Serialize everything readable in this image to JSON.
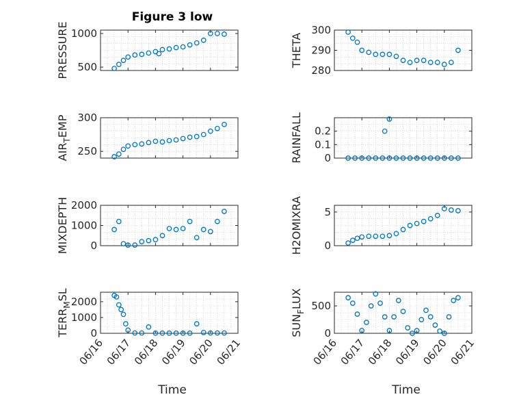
{
  "figure": {
    "title": "Figure 3 low",
    "xlabel_left": "Time",
    "xlabel_right": "Time"
  },
  "colors": {
    "marker": "#0072BD",
    "axis": "#262626",
    "grid": "#bfbfbf"
  },
  "chart_data": [
    {
      "type": "scatter",
      "title": "Figure 3 low",
      "ylabel": "PRESSURE",
      "xlim": [
        "06/16",
        "06/21"
      ],
      "ylim": [
        450,
        1050
      ],
      "yticks": [
        500,
        1000
      ],
      "grid": true,
      "series": [
        {
          "x": [
            "06/16 12:00",
            "06/16 16:00",
            "06/16 20:00",
            "06/17 00:00",
            "06/17 06:00",
            "06/17 12:00",
            "06/17 18:00",
            "06/18 00:00",
            "06/18 03:00",
            "06/18 06:00",
            "06/18 12:00",
            "06/18 18:00",
            "06/19 00:00",
            "06/19 06:00",
            "06/19 12:00",
            "06/19 18:00",
            "06/20 00:00",
            "06/20 06:00",
            "06/20 12:00"
          ],
          "y": [
            480,
            540,
            600,
            650,
            680,
            690,
            710,
            730,
            700,
            760,
            770,
            790,
            800,
            830,
            860,
            900,
            1000,
            1000,
            990
          ]
        }
      ]
    },
    {
      "type": "scatter",
      "ylabel": "THETA",
      "xlim": [
        "06/16",
        "06/21"
      ],
      "ylim": [
        280,
        300
      ],
      "yticks": [
        280,
        290,
        300
      ],
      "grid": true,
      "series": [
        {
          "x": [
            "06/16 12:00",
            "06/16 16:00",
            "06/16 20:00",
            "06/17 00:00",
            "06/17 06:00",
            "06/17 12:00",
            "06/17 18:00",
            "06/18 00:00",
            "06/18 06:00",
            "06/18 12:00",
            "06/18 18:00",
            "06/19 00:00",
            "06/19 06:00",
            "06/19 12:00",
            "06/19 18:00",
            "06/20 00:00",
            "06/20 06:00",
            "06/20 12:00"
          ],
          "y": [
            299,
            296,
            294,
            290,
            289,
            288,
            288,
            288,
            287,
            285,
            284,
            285,
            285,
            284,
            284,
            283,
            284,
            290
          ]
        }
      ]
    },
    {
      "type": "scatter",
      "ylabel": "AIR_TEMP",
      "xlim": [
        "06/16",
        "06/21"
      ],
      "ylim": [
        240,
        300
      ],
      "yticks": [
        250,
        300
      ],
      "grid": true,
      "series": [
        {
          "x": [
            "06/16 12:00",
            "06/16 16:00",
            "06/16 20:00",
            "06/17 00:00",
            "06/17 06:00",
            "06/17 12:00",
            "06/17 18:00",
            "06/18 00:00",
            "06/18 06:00",
            "06/18 12:00",
            "06/18 18:00",
            "06/19 00:00",
            "06/19 06:00",
            "06/19 12:00",
            "06/19 18:00",
            "06/20 00:00",
            "06/20 06:00",
            "06/20 12:00"
          ],
          "y": [
            242,
            246,
            253,
            258,
            260,
            261,
            263,
            265,
            264,
            266,
            267,
            269,
            271,
            272,
            275,
            280,
            284,
            290
          ]
        }
      ]
    },
    {
      "type": "scatter",
      "ylabel": "RAINFALL",
      "xlim": [
        "06/16",
        "06/21"
      ],
      "ylim": [
        0,
        0.3
      ],
      "yticks": [
        0,
        0.1,
        0.2
      ],
      "grid": true,
      "series": [
        {
          "x": [
            "06/16 12:00",
            "06/16 18:00",
            "06/17 00:00",
            "06/17 06:00",
            "06/17 12:00",
            "06/17 18:00",
            "06/18 00:00",
            "06/18 06:00",
            "06/18 12:00",
            "06/18 18:00",
            "06/19 00:00",
            "06/19 06:00",
            "06/19 12:00",
            "06/19 18:00",
            "06/20 00:00",
            "06/20 06:00",
            "06/20 12:00",
            "06/17 20:00",
            "06/18 00:00"
          ],
          "y": [
            0,
            0,
            0,
            0,
            0,
            0,
            0,
            0,
            0,
            0,
            0,
            0,
            0,
            0,
            0,
            0,
            0,
            0.2,
            0.29
          ]
        }
      ]
    },
    {
      "type": "scatter",
      "ylabel": "MIXDEPTH",
      "xlim": [
        "06/16",
        "06/21"
      ],
      "ylim": [
        0,
        2000
      ],
      "yticks": [
        0,
        1000,
        2000
      ],
      "grid": true,
      "series": [
        {
          "x": [
            "06/16 12:00",
            "06/16 16:00",
            "06/16 20:00",
            "06/17 00:00",
            "06/17 06:00",
            "06/17 12:00",
            "06/17 18:00",
            "06/18 00:00",
            "06/18 06:00",
            "06/18 12:00",
            "06/18 18:00",
            "06/19 00:00",
            "06/19 06:00",
            "06/19 12:00",
            "06/19 18:00",
            "06/20 00:00",
            "06/20 06:00",
            "06/20 12:00"
          ],
          "y": [
            800,
            1200,
            100,
            30,
            30,
            200,
            250,
            300,
            500,
            850,
            800,
            850,
            1200,
            400,
            800,
            700,
            1200,
            1700
          ]
        }
      ]
    },
    {
      "type": "scatter",
      "ylabel": "H2OMIXRA",
      "xlim": [
        "06/16",
        "06/21"
      ],
      "ylim": [
        0,
        6
      ],
      "yticks": [
        0,
        5
      ],
      "grid": true,
      "series": [
        {
          "x": [
            "06/16 12:00",
            "06/16 16:00",
            "06/16 20:00",
            "06/17 00:00",
            "06/17 06:00",
            "06/17 12:00",
            "06/17 18:00",
            "06/18 00:00",
            "06/18 06:00",
            "06/18 12:00",
            "06/18 18:00",
            "06/19 00:00",
            "06/19 06:00",
            "06/19 12:00",
            "06/19 18:00",
            "06/20 00:00",
            "06/20 06:00",
            "06/20 12:00"
          ],
          "y": [
            0.4,
            0.8,
            1.1,
            1.3,
            1.4,
            1.4,
            1.4,
            1.5,
            1.8,
            2.4,
            3.0,
            3.3,
            3.6,
            4.0,
            4.5,
            5.5,
            5.3,
            5.2
          ]
        }
      ]
    },
    {
      "type": "scatter",
      "ylabel": "TERR_MSL",
      "xlim": [
        "06/16",
        "06/21"
      ],
      "ylim": [
        0,
        2600
      ],
      "yticks": [
        0,
        1000,
        2000
      ],
      "grid": true,
      "series": [
        {
          "x": [
            "06/16 12:00",
            "06/16 14:00",
            "06/16 16:00",
            "06/16 18:00",
            "06/16 20:00",
            "06/16 22:00",
            "06/17 00:00",
            "06/17 06:00",
            "06/17 12:00",
            "06/17 18:00",
            "06/18 00:00",
            "06/18 06:00",
            "06/18 12:00",
            "06/18 18:00",
            "06/19 00:00",
            "06/19 06:00",
            "06/19 12:00",
            "06/19 18:00",
            "06/20 00:00",
            "06/20 06:00",
            "06/20 12:00"
          ],
          "y": [
            2400,
            2300,
            1800,
            1500,
            1200,
            600,
            200,
            20,
            20,
            400,
            10,
            10,
            10,
            10,
            10,
            10,
            600,
            50,
            20,
            20,
            20
          ]
        }
      ]
    },
    {
      "type": "scatter",
      "ylabel": "SUN_FLUX",
      "xlim": [
        "06/16",
        "06/21"
      ],
      "ylim": [
        0,
        750
      ],
      "yticks": [
        0,
        500
      ],
      "grid": true,
      "series": [
        {
          "x": [
            "06/16 12:00",
            "06/16 16:00",
            "06/16 20:00",
            "06/17 00:00",
            "06/17 04:00",
            "06/17 08:00",
            "06/17 12:00",
            "06/17 16:00",
            "06/17 20:00",
            "06/18 00:00",
            "06/18 04:00",
            "06/18 08:00",
            "06/18 12:00",
            "06/18 16:00",
            "06/18 20:00",
            "06/19 00:00",
            "06/19 04:00",
            "06/19 08:00",
            "06/19 12:00",
            "06/19 16:00",
            "06/19 20:00",
            "06/20 00:00",
            "06/20 04:00",
            "06/20 08:00",
            "06/20 12:00"
          ],
          "y": [
            650,
            550,
            350,
            50,
            200,
            500,
            720,
            550,
            300,
            50,
            300,
            600,
            400,
            100,
            0,
            50,
            250,
            420,
            300,
            150,
            40,
            0,
            300,
            600,
            650
          ]
        }
      ]
    }
  ]
}
